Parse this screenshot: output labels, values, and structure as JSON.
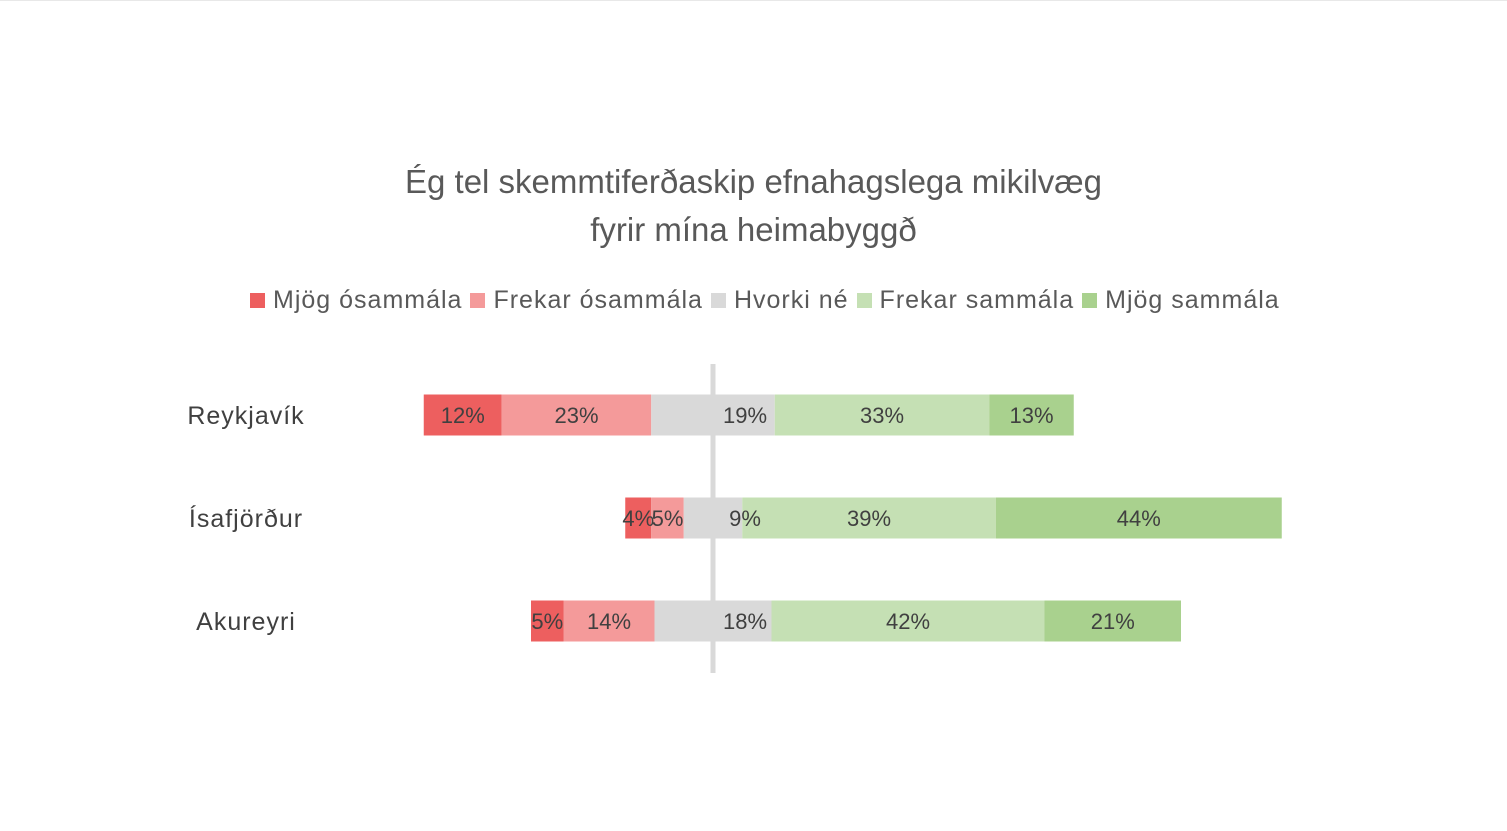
{
  "chart_data": {
    "type": "bar",
    "orientation": "horizontal",
    "stacked": "diverging",
    "title_lines": [
      "Ég tel skemmtiferðaskip efnahagslega mikilvæg",
      "fyrir mína heimabyggð"
    ],
    "categories": [
      "Reykjavík",
      "Ísafjörður",
      "Akureyri"
    ],
    "series": [
      {
        "name": "Mjög ósammála",
        "color": "#ED5F5F",
        "values": [
          12,
          4,
          5
        ]
      },
      {
        "name": "Frekar ósammála",
        "color": "#F49A9A",
        "values": [
          23,
          5,
          14
        ]
      },
      {
        "name": "Hvorki né",
        "color": "#D9D9D9",
        "values": [
          19,
          9,
          18
        ]
      },
      {
        "name": "Frekar sammála",
        "color": "#C5E0B4",
        "values": [
          33,
          39,
          42
        ]
      },
      {
        "name": "Mjög sammála",
        "color": "#A9D18E",
        "values": [
          13,
          44,
          21
        ]
      }
    ],
    "value_suffix": "%",
    "legend_position": "top",
    "center_line_color": "#D9D9D9"
  }
}
